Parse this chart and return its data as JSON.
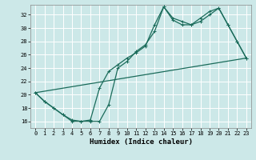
{
  "xlabel": "Humidex (Indice chaleur)",
  "background_color": "#cce8e8",
  "grid_color": "#ffffff",
  "line_color": "#1a6b5a",
  "xlim": [
    -0.5,
    23.5
  ],
  "ylim": [
    15.0,
    33.5
  ],
  "yticks": [
    16,
    18,
    20,
    22,
    24,
    26,
    28,
    30,
    32
  ],
  "xticks": [
    0,
    1,
    2,
    3,
    4,
    5,
    6,
    7,
    8,
    9,
    10,
    11,
    12,
    13,
    14,
    15,
    16,
    17,
    18,
    19,
    20,
    21,
    22,
    23
  ],
  "line1_x": [
    0,
    1,
    2,
    3,
    4,
    5,
    6,
    7,
    8,
    9,
    10,
    11,
    12,
    13,
    14,
    15,
    16,
    17,
    18,
    19,
    20,
    21,
    22,
    23
  ],
  "line1_y": [
    20.3,
    19.0,
    18.0,
    17.0,
    16.2,
    16.0,
    16.2,
    21.0,
    23.5,
    24.5,
    25.5,
    26.3,
    27.3,
    30.5,
    33.2,
    31.2,
    30.5,
    30.5,
    31.0,
    32.0,
    33.0,
    30.5,
    28.0,
    25.5
  ],
  "line2_x": [
    0,
    1,
    2,
    3,
    4,
    5,
    6,
    7,
    8,
    9,
    10,
    11,
    12,
    13,
    14,
    15,
    16,
    17,
    18,
    19,
    20,
    21,
    22,
    23
  ],
  "line2_y": [
    20.3,
    19.0,
    18.0,
    17.0,
    16.0,
    16.0,
    16.0,
    16.0,
    18.5,
    24.0,
    25.0,
    26.5,
    27.5,
    29.5,
    33.2,
    31.5,
    31.0,
    30.5,
    31.5,
    32.5,
    33.0,
    30.5,
    28.0,
    25.5
  ],
  "line3_x": [
    0,
    23
  ],
  "line3_y": [
    20.3,
    25.5
  ]
}
